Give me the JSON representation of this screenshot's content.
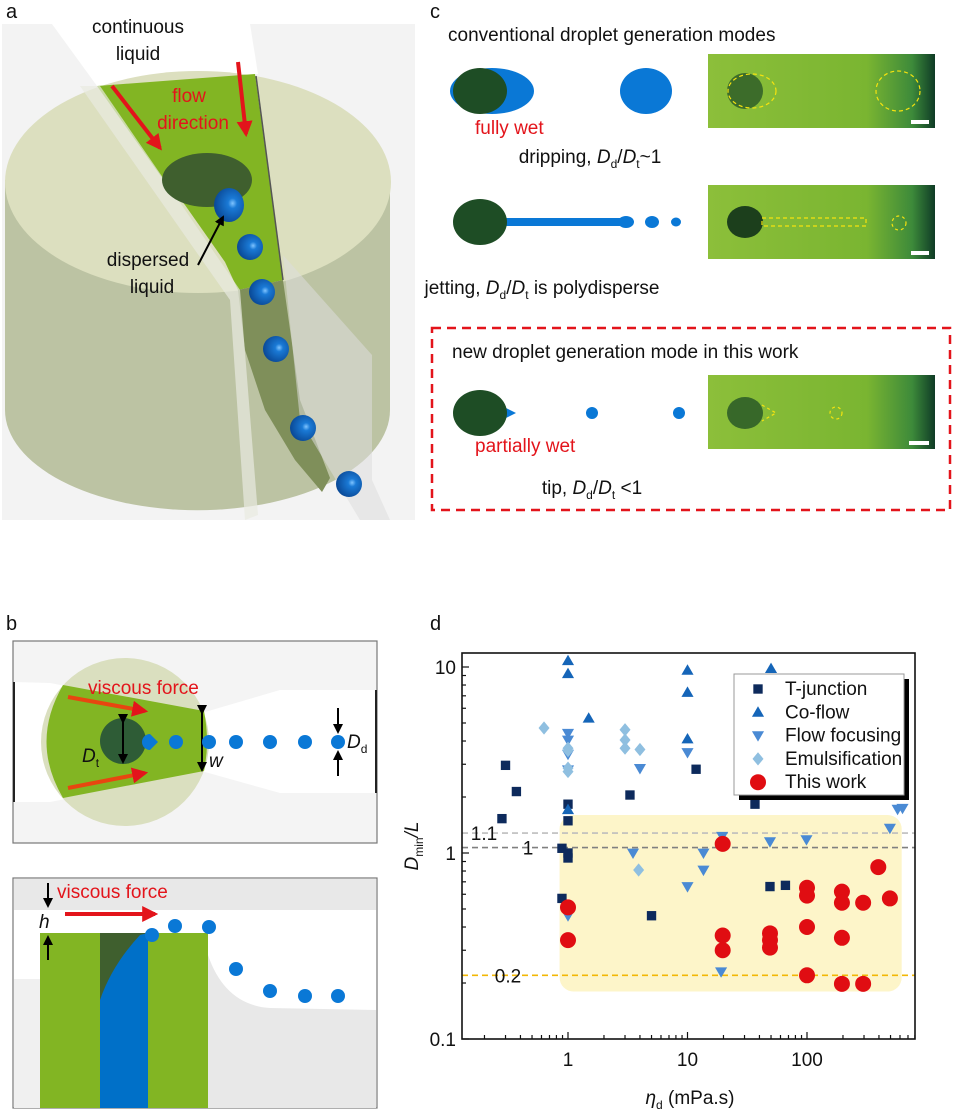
{
  "panels": {
    "a": "a",
    "b": "b",
    "c": "c",
    "d": "d"
  },
  "panel_a": {
    "continuous_line1": "continuous",
    "continuous_line2": "liquid",
    "flow_line1": "flow",
    "flow_line2": "direction",
    "dispersed_line1": "dispersed",
    "dispersed_line2": "liquid"
  },
  "panel_b": {
    "top_force": "viscous force",
    "dt_var": "D",
    "dt_sub": "t",
    "w_var": "w",
    "dd_var": "D",
    "dd_sub": "d",
    "bottom_force": "viscous force",
    "h_var": "h"
  },
  "panel_c": {
    "conventional_title": "conventional droplet generation modes",
    "fully_wet": "fully wet",
    "dripping": {
      "prefix": "dripping, ",
      "v1": "D",
      "s1": "d",
      "sep": "/",
      "v2": "D",
      "s2": "t",
      "suffix": "~1"
    },
    "jetting": {
      "prefix": "jetting, ",
      "v1": "D",
      "s1": "d",
      "sep": "/",
      "v2": "D",
      "s2": "t",
      "suffix": " is polydisperse"
    },
    "new_title": "new droplet generation mode in this work",
    "partially_wet": "partially wet",
    "tip": {
      "prefix": "tip, ",
      "v1": "D",
      "s1": "d",
      "sep": "/",
      "v2": "D",
      "s2": "t",
      "suffix": " <1"
    },
    "colors": {
      "highlight_box": "#e3141b",
      "droplet": "#0a78d6",
      "nozzle": "#1e4d25"
    }
  },
  "chart_data": {
    "type": "scatter",
    "x_scale": "log",
    "y_scale": "log",
    "xlabel": {
      "var": "η",
      "sub": "d",
      "unit": " (mPa.s)"
    },
    "ylabel": {
      "var": "D",
      "sub": "min",
      "rest": "/L"
    },
    "xlim": [
      0.13,
      800
    ],
    "ylim": [
      0.1,
      12
    ],
    "x_ticks": [
      "1",
      "10",
      "100"
    ],
    "y_ticks": [
      "0.1",
      "1",
      "10"
    ],
    "legend_position": "top-right",
    "reference_lines": [
      {
        "label": "1.1",
        "y": 1.28,
        "color": "#bdbdbd"
      },
      {
        "label": "1",
        "y": 1.07,
        "color": "#808080"
      },
      {
        "label": "0.2",
        "y": 0.22,
        "color": "#f2b705"
      }
    ],
    "highlight_region": {
      "x": [
        0.85,
        620
      ],
      "y": [
        0.18,
        1.6
      ],
      "color": "#fdf5c9"
    },
    "series": [
      {
        "name": "T-junction",
        "marker": "square",
        "color": "#0d2a5c",
        "points": [
          [
            0.28,
            1.53
          ],
          [
            0.3,
            2.96
          ],
          [
            0.37,
            2.14
          ],
          [
            0.89,
            1.06
          ],
          [
            1,
            1.83
          ],
          [
            1,
            1.49
          ],
          [
            1,
            1.0
          ],
          [
            1,
            0.94
          ],
          [
            0.89,
            0.57
          ],
          [
            3.3,
            2.05
          ],
          [
            5.0,
            0.46
          ],
          [
            11.8,
            2.82
          ],
          [
            36.7,
            1.83
          ],
          [
            49,
            0.66
          ],
          [
            66,
            0.67
          ]
        ]
      },
      {
        "name": "Co-flow",
        "marker": "triangle-up",
        "color": "#1565b8",
        "points": [
          [
            1,
            10.8
          ],
          [
            1,
            9.2
          ],
          [
            1.49,
            5.3
          ],
          [
            10,
            9.6
          ],
          [
            10,
            7.3
          ],
          [
            10,
            4.1
          ],
          [
            50,
            9.8
          ],
          [
            1,
            1.71
          ]
        ]
      },
      {
        "name": "Flow focusing",
        "marker": "triangle-down",
        "color": "#4a8ad4",
        "points": [
          [
            1,
            4.4
          ],
          [
            1,
            4.05
          ],
          [
            1,
            3.4
          ],
          [
            1,
            2.8
          ],
          [
            1,
            0.46
          ],
          [
            3.5,
            1.0
          ],
          [
            4.0,
            2.85
          ],
          [
            10,
            3.47
          ],
          [
            10,
            0.66
          ],
          [
            13.6,
            1.0
          ],
          [
            13.6,
            0.81
          ],
          [
            19.1,
            0.23
          ],
          [
            19.5,
            1.23
          ],
          [
            49,
            1.15
          ],
          [
            99,
            1.18
          ],
          [
            494,
            1.36
          ],
          [
            573,
            1.72
          ],
          [
            630,
            1.74
          ]
        ]
      },
      {
        "name": "Emulsification",
        "marker": "diamond",
        "color": "#8fbfe0",
        "points": [
          [
            0.63,
            4.7
          ],
          [
            1,
            3.66
          ],
          [
            1,
            3.55
          ],
          [
            1,
            2.86
          ],
          [
            1,
            2.74
          ],
          [
            3.0,
            4.6
          ],
          [
            3.0,
            4.05
          ],
          [
            3.0,
            3.66
          ],
          [
            4.0,
            3.6
          ],
          [
            3.9,
            0.81
          ]
        ]
      },
      {
        "name": "This work",
        "marker": "circle",
        "color": "#e00d12",
        "points": [
          [
            1,
            0.51
          ],
          [
            1,
            0.34
          ],
          [
            19.7,
            1.12
          ],
          [
            19.7,
            0.36
          ],
          [
            19.7,
            0.3
          ],
          [
            49,
            0.37
          ],
          [
            49,
            0.34
          ],
          [
            49,
            0.31
          ],
          [
            100,
            0.65
          ],
          [
            100,
            0.59
          ],
          [
            100,
            0.4
          ],
          [
            100,
            0.22
          ],
          [
            196,
            0.62
          ],
          [
            196,
            0.54
          ],
          [
            196,
            0.35
          ],
          [
            196,
            0.198
          ],
          [
            295,
            0.54
          ],
          [
            295,
            0.198
          ],
          [
            395,
            0.84
          ],
          [
            494,
            0.57
          ]
        ]
      }
    ]
  }
}
